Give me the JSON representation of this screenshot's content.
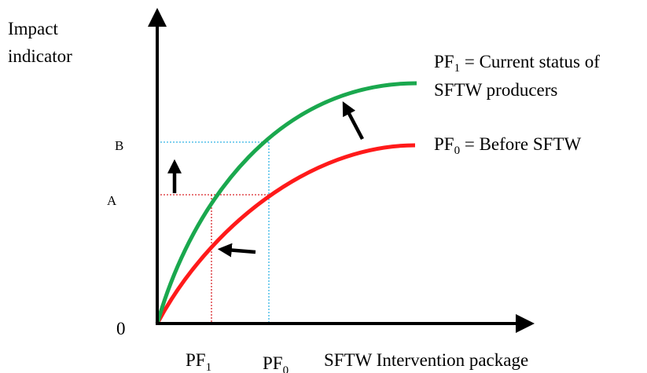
{
  "y_axis_label_line1": "Impact",
  "y_axis_label_line2": "indicator",
  "x_axis_label": "SFTW Intervention package",
  "origin_label": "0",
  "y_tick_b": "B",
  "y_tick_a": "A",
  "x_tick_pf1": {
    "base": "PF",
    "sub": "1"
  },
  "x_tick_pf0": {
    "base": "PF",
    "sub": "0"
  },
  "legend_pf1": {
    "base": "PF",
    "sub": "1",
    "text": " = Current status of",
    "line2": "SFTW producers"
  },
  "legend_pf0": {
    "base": "PF",
    "sub": "0",
    "text": " = Before SFTW"
  },
  "colors": {
    "axis": "#000000",
    "curve_pf1": "#1aa84e",
    "curve_pf0": "#ff1a1a",
    "guide_pf0": "#33b5e5",
    "guide_pf1": "#d9262b",
    "arrow": "#000000"
  }
}
